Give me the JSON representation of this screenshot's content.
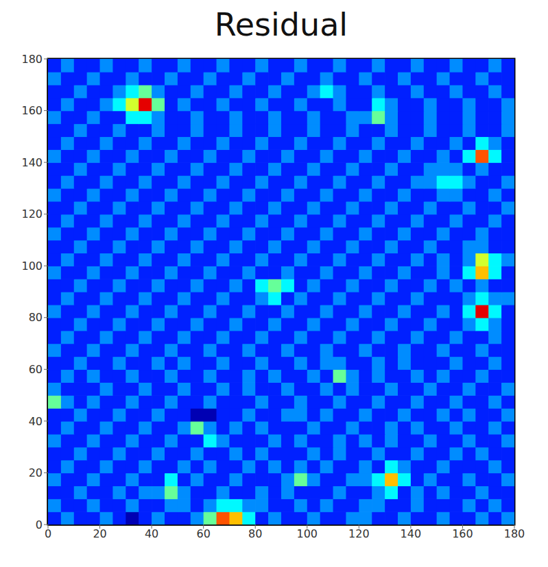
{
  "chart_data": {
    "type": "heatmap",
    "title": "Residual",
    "x": [
      2.5,
      7.5,
      12.5,
      17.5,
      22.5,
      27.5,
      32.5,
      37.5,
      42.5,
      47.5,
      52.5,
      57.5,
      62.5,
      67.5,
      72.5,
      77.5,
      82.5,
      87.5,
      92.5,
      97.5,
      102.5,
      107.5,
      112.5,
      117.5,
      122.5,
      127.5,
      132.5,
      137.5,
      142.5,
      147.5,
      152.5,
      157.5,
      162.5,
      167.5,
      172.5,
      177.5
    ],
    "y": [
      2.5,
      7.5,
      12.5,
      17.5,
      22.5,
      27.5,
      32.5,
      37.5,
      42.5,
      47.5,
      52.5,
      57.5,
      62.5,
      67.5,
      72.5,
      77.5,
      82.5,
      87.5,
      92.5,
      97.5,
      102.5,
      107.5,
      112.5,
      117.5,
      122.5,
      127.5,
      132.5,
      137.5,
      142.5,
      147.5,
      152.5,
      157.5,
      162.5,
      167.5,
      172.5,
      177.5
    ],
    "xlim": [
      0,
      180
    ],
    "ylim": [
      0,
      180
    ],
    "xticks": [
      0,
      20,
      40,
      60,
      80,
      100,
      120,
      140,
      160,
      180
    ],
    "yticks": [
      0,
      20,
      40,
      60,
      80,
      100,
      120,
      140,
      160,
      180
    ],
    "cells": [
      [
        2,
        3,
        2,
        2,
        3,
        2,
        1,
        2,
        3,
        2,
        2,
        3,
        5,
        8,
        7,
        4,
        2,
        3,
        2,
        2,
        3,
        2,
        2,
        3,
        3,
        2,
        2,
        3,
        2,
        2,
        3,
        2,
        2,
        3,
        2,
        3
      ],
      [
        3,
        2,
        2,
        3,
        2,
        2,
        3,
        2,
        2,
        3,
        3,
        2,
        3,
        4,
        4,
        3,
        3,
        2,
        2,
        3,
        2,
        3,
        2,
        2,
        3,
        3,
        2,
        2,
        3,
        2,
        2,
        2,
        3,
        2,
        3,
        2
      ],
      [
        2,
        2,
        3,
        2,
        2,
        3,
        2,
        3,
        3,
        5,
        3,
        2,
        2,
        3,
        2,
        2,
        3,
        2,
        3,
        2,
        2,
        2,
        3,
        2,
        2,
        3,
        4,
        2,
        3,
        2,
        3,
        2,
        2,
        3,
        2,
        2
      ],
      [
        3,
        2,
        2,
        3,
        2,
        2,
        3,
        2,
        2,
        4,
        2,
        3,
        2,
        2,
        3,
        2,
        2,
        2,
        3,
        5,
        3,
        2,
        2,
        3,
        3,
        4,
        7,
        4,
        2,
        3,
        2,
        2,
        3,
        2,
        2,
        3
      ],
      [
        2,
        3,
        2,
        2,
        3,
        2,
        2,
        3,
        2,
        2,
        3,
        2,
        3,
        2,
        2,
        3,
        2,
        3,
        2,
        3,
        2,
        3,
        2,
        2,
        3,
        2,
        4,
        3,
        2,
        2,
        3,
        2,
        2,
        2,
        3,
        2
      ],
      [
        2,
        2,
        3,
        2,
        2,
        3,
        2,
        2,
        3,
        2,
        2,
        3,
        2,
        2,
        3,
        2,
        3,
        2,
        2,
        2,
        3,
        2,
        3,
        2,
        2,
        3,
        2,
        2,
        3,
        2,
        2,
        3,
        2,
        3,
        2,
        2
      ],
      [
        3,
        2,
        2,
        3,
        2,
        2,
        3,
        2,
        2,
        3,
        2,
        2,
        4,
        3,
        2,
        2,
        2,
        3,
        2,
        3,
        2,
        2,
        3,
        2,
        3,
        2,
        3,
        2,
        2,
        3,
        2,
        2,
        3,
        2,
        2,
        3
      ],
      [
        2,
        3,
        2,
        2,
        3,
        2,
        2,
        3,
        2,
        2,
        3,
        5,
        3,
        2,
        3,
        2,
        3,
        2,
        2,
        2,
        3,
        2,
        2,
        3,
        2,
        2,
        3,
        2,
        3,
        2,
        2,
        3,
        2,
        2,
        3,
        2
      ],
      [
        2,
        2,
        3,
        2,
        2,
        3,
        2,
        2,
        3,
        2,
        2,
        1,
        1,
        2,
        2,
        3,
        2,
        2,
        3,
        3,
        2,
        3,
        2,
        2,
        3,
        2,
        2,
        3,
        2,
        2,
        3,
        2,
        3,
        2,
        2,
        3
      ],
      [
        5,
        3,
        2,
        3,
        2,
        2,
        3,
        2,
        2,
        3,
        2,
        2,
        3,
        2,
        2,
        2,
        3,
        2,
        2,
        3,
        2,
        2,
        3,
        2,
        2,
        3,
        2,
        2,
        3,
        2,
        2,
        3,
        2,
        2,
        3,
        2
      ],
      [
        3,
        2,
        2,
        2,
        3,
        2,
        2,
        3,
        2,
        2,
        3,
        2,
        2,
        3,
        2,
        3,
        2,
        2,
        3,
        2,
        2,
        3,
        2,
        3,
        2,
        2,
        3,
        2,
        2,
        3,
        2,
        2,
        3,
        2,
        2,
        3
      ],
      [
        2,
        3,
        2,
        3,
        2,
        2,
        3,
        2,
        2,
        3,
        2,
        2,
        3,
        2,
        2,
        3,
        2,
        3,
        2,
        2,
        3,
        2,
        5,
        3,
        2,
        3,
        2,
        2,
        3,
        2,
        3,
        2,
        2,
        3,
        2,
        2
      ],
      [
        2,
        2,
        3,
        2,
        2,
        3,
        2,
        2,
        3,
        2,
        3,
        2,
        2,
        3,
        2,
        2,
        3,
        2,
        2,
        3,
        2,
        3,
        3,
        2,
        2,
        3,
        2,
        3,
        2,
        2,
        2,
        3,
        2,
        2,
        3,
        2
      ],
      [
        3,
        2,
        2,
        3,
        2,
        2,
        3,
        2,
        2,
        3,
        2,
        2,
        3,
        2,
        2,
        3,
        2,
        2,
        3,
        2,
        2,
        3,
        2,
        2,
        3,
        2,
        2,
        3,
        2,
        2,
        3,
        2,
        2,
        3,
        2,
        2
      ],
      [
        2,
        3,
        2,
        2,
        3,
        2,
        2,
        3,
        2,
        2,
        3,
        2,
        2,
        3,
        2,
        2,
        3,
        2,
        2,
        3,
        2,
        2,
        3,
        2,
        2,
        3,
        2,
        2,
        3,
        2,
        2,
        3,
        2,
        2,
        3,
        2
      ],
      [
        2,
        2,
        3,
        2,
        2,
        3,
        2,
        2,
        3,
        2,
        2,
        3,
        2,
        2,
        3,
        2,
        2,
        3,
        2,
        2,
        3,
        2,
        2,
        3,
        2,
        2,
        3,
        2,
        2,
        3,
        2,
        2,
        3,
        4,
        3,
        2
      ],
      [
        3,
        2,
        2,
        3,
        2,
        2,
        3,
        2,
        2,
        3,
        2,
        2,
        3,
        2,
        2,
        3,
        2,
        2,
        3,
        2,
        2,
        3,
        2,
        2,
        3,
        2,
        2,
        3,
        2,
        2,
        3,
        2,
        4,
        9,
        4,
        2
      ],
      [
        2,
        3,
        2,
        2,
        3,
        2,
        2,
        3,
        2,
        2,
        3,
        2,
        2,
        3,
        2,
        2,
        3,
        4,
        2,
        3,
        2,
        2,
        3,
        2,
        2,
        3,
        2,
        2,
        3,
        2,
        2,
        2,
        3,
        4,
        3,
        3
      ],
      [
        2,
        2,
        3,
        2,
        2,
        3,
        2,
        2,
        3,
        2,
        2,
        3,
        2,
        2,
        3,
        2,
        4,
        5,
        4,
        2,
        3,
        2,
        2,
        3,
        2,
        2,
        3,
        2,
        2,
        3,
        2,
        3,
        2,
        3,
        2,
        2
      ],
      [
        3,
        2,
        2,
        3,
        2,
        2,
        3,
        2,
        2,
        3,
        2,
        2,
        3,
        2,
        2,
        3,
        2,
        2,
        3,
        2,
        2,
        3,
        2,
        2,
        3,
        2,
        2,
        3,
        2,
        2,
        3,
        2,
        4,
        7,
        4,
        2
      ],
      [
        2,
        3,
        2,
        2,
        3,
        2,
        2,
        3,
        2,
        2,
        3,
        2,
        2,
        3,
        2,
        2,
        3,
        2,
        2,
        3,
        2,
        2,
        3,
        2,
        2,
        3,
        2,
        2,
        3,
        2,
        3,
        2,
        3,
        6,
        4,
        3
      ],
      [
        2,
        2,
        3,
        2,
        2,
        3,
        2,
        2,
        3,
        2,
        2,
        3,
        2,
        2,
        3,
        2,
        2,
        3,
        2,
        2,
        3,
        2,
        2,
        3,
        2,
        2,
        3,
        2,
        2,
        3,
        2,
        2,
        3,
        3,
        2,
        2
      ],
      [
        3,
        2,
        2,
        3,
        2,
        2,
        3,
        2,
        2,
        3,
        2,
        2,
        3,
        2,
        2,
        3,
        2,
        2,
        3,
        2,
        2,
        3,
        2,
        2,
        3,
        2,
        2,
        3,
        2,
        2,
        3,
        2,
        2,
        3,
        2,
        2
      ],
      [
        2,
        3,
        2,
        2,
        3,
        2,
        2,
        3,
        2,
        2,
        3,
        2,
        2,
        3,
        2,
        2,
        3,
        2,
        2,
        3,
        2,
        2,
        3,
        2,
        2,
        3,
        2,
        2,
        3,
        2,
        2,
        3,
        2,
        2,
        3,
        2
      ],
      [
        2,
        2,
        3,
        2,
        2,
        3,
        2,
        2,
        3,
        2,
        2,
        3,
        2,
        2,
        3,
        2,
        2,
        3,
        2,
        2,
        3,
        2,
        2,
        3,
        2,
        2,
        3,
        2,
        2,
        3,
        2,
        2,
        3,
        2,
        2,
        3
      ],
      [
        3,
        2,
        2,
        3,
        2,
        2,
        3,
        2,
        2,
        3,
        2,
        2,
        3,
        2,
        2,
        3,
        2,
        2,
        3,
        2,
        2,
        3,
        2,
        2,
        3,
        2,
        2,
        3,
        2,
        2,
        3,
        3,
        2,
        2,
        3,
        2
      ],
      [
        2,
        3,
        2,
        2,
        3,
        2,
        2,
        3,
        2,
        2,
        3,
        2,
        2,
        3,
        2,
        2,
        3,
        2,
        2,
        3,
        2,
        2,
        3,
        2,
        2,
        3,
        2,
        2,
        3,
        3,
        4,
        4,
        3,
        2,
        2,
        3
      ],
      [
        2,
        2,
        3,
        2,
        2,
        3,
        2,
        2,
        3,
        2,
        2,
        3,
        2,
        2,
        3,
        2,
        2,
        3,
        2,
        2,
        3,
        2,
        2,
        3,
        2,
        2,
        3,
        2,
        2,
        3,
        3,
        3,
        2,
        3,
        2,
        2
      ],
      [
        3,
        2,
        2,
        3,
        2,
        2,
        3,
        2,
        2,
        3,
        2,
        2,
        3,
        2,
        2,
        3,
        2,
        2,
        3,
        2,
        2,
        3,
        2,
        2,
        3,
        2,
        2,
        3,
        2,
        2,
        3,
        2,
        4,
        8,
        4,
        2
      ],
      [
        2,
        3,
        2,
        2,
        3,
        2,
        2,
        3,
        2,
        2,
        3,
        2,
        2,
        3,
        2,
        2,
        3,
        2,
        2,
        3,
        2,
        2,
        3,
        2,
        2,
        3,
        2,
        2,
        3,
        2,
        2,
        3,
        2,
        4,
        3,
        2
      ],
      [
        2,
        2,
        3,
        2,
        2,
        3,
        2,
        2,
        3,
        2,
        2,
        3,
        2,
        2,
        3,
        2,
        2,
        3,
        2,
        2,
        3,
        2,
        2,
        3,
        2,
        2,
        3,
        2,
        2,
        3,
        2,
        2,
        3,
        2,
        2,
        3
      ],
      [
        3,
        2,
        2,
        3,
        2,
        2,
        4,
        4,
        3,
        2,
        2,
        3,
        2,
        2,
        3,
        2,
        2,
        3,
        2,
        2,
        3,
        2,
        2,
        3,
        3,
        5,
        3,
        2,
        2,
        3,
        2,
        2,
        3,
        2,
        2,
        3
      ],
      [
        2,
        3,
        2,
        2,
        3,
        4,
        6,
        9,
        5,
        2,
        3,
        2,
        2,
        3,
        2,
        2,
        3,
        2,
        2,
        3,
        2,
        2,
        3,
        2,
        2,
        4,
        3,
        2,
        2,
        3,
        2,
        2,
        3,
        2,
        2,
        3
      ],
      [
        2,
        2,
        3,
        2,
        2,
        3,
        4,
        5,
        3,
        2,
        2,
        3,
        2,
        2,
        3,
        2,
        2,
        3,
        2,
        2,
        3,
        4,
        3,
        2,
        2,
        3,
        2,
        2,
        3,
        2,
        2,
        3,
        2,
        2,
        3,
        2
      ],
      [
        3,
        2,
        2,
        3,
        2,
        2,
        3,
        2,
        2,
        3,
        2,
        2,
        3,
        2,
        2,
        3,
        2,
        2,
        3,
        2,
        2,
        3,
        2,
        2,
        3,
        2,
        2,
        3,
        2,
        2,
        3,
        2,
        2,
        3,
        2,
        2
      ],
      [
        2,
        3,
        2,
        2,
        3,
        2,
        2,
        3,
        2,
        2,
        3,
        2,
        2,
        3,
        2,
        2,
        3,
        2,
        2,
        3,
        2,
        2,
        3,
        2,
        2,
        3,
        2,
        2,
        3,
        2,
        2,
        3,
        2,
        2,
        3,
        2
      ]
    ]
  }
}
